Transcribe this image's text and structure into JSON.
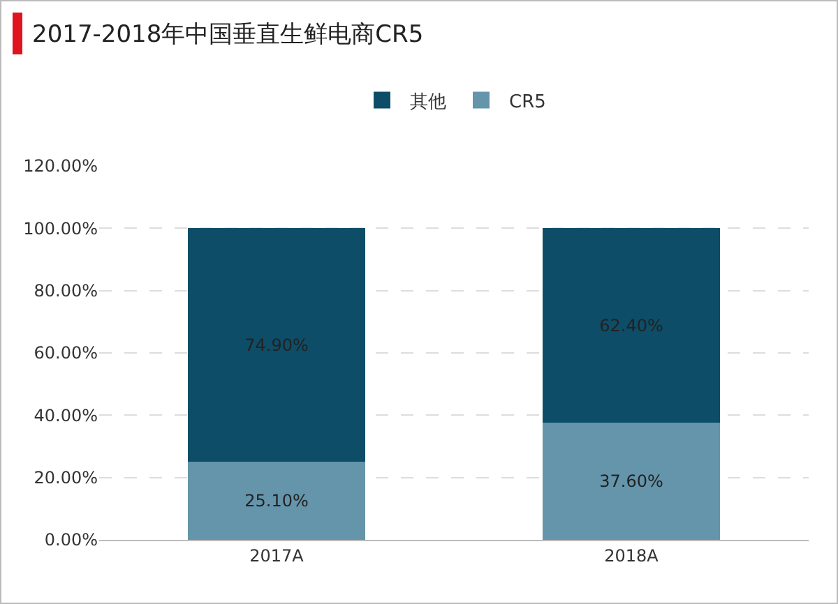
{
  "chart_data": {
    "type": "bar",
    "title": "2017-2018年中国垂直生鲜电商CR5",
    "categories": [
      "2017A",
      "2018A"
    ],
    "stacked": true,
    "series": [
      {
        "name": "CR5",
        "color": "#6595ab",
        "values": [
          25.1,
          37.6
        ],
        "value_labels": [
          "25.10%",
          "37.60%"
        ]
      },
      {
        "name": "其他",
        "color": "#0e4d68",
        "values": [
          74.9,
          62.4
        ],
        "value_labels": [
          "74.90%",
          "62.40%"
        ]
      }
    ],
    "ylim": [
      0,
      120
    ],
    "yticks": [
      {
        "value": 0,
        "label": "0.00%"
      },
      {
        "value": 20,
        "label": "20.00%"
      },
      {
        "value": 40,
        "label": "40.00%"
      },
      {
        "value": 60,
        "label": "60.00%"
      },
      {
        "value": 80,
        "label": "80.00%"
      },
      {
        "value": 100,
        "label": "100.00%"
      },
      {
        "value": 120,
        "label": "120.00%"
      }
    ],
    "grid": "y",
    "legend": "top"
  }
}
